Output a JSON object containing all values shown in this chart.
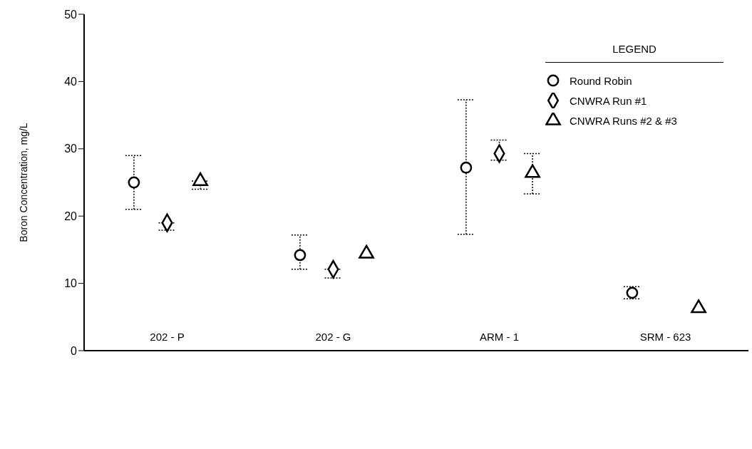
{
  "chart_data": {
    "type": "scatter",
    "ylabel": "Boron Concentration, mg/L",
    "legend_title": "LEGEND",
    "legend": "top right",
    "grid": false,
    "categories": [
      null,
      null,
      "202 - P",
      null,
      null,
      null,
      null,
      "202 - G",
      null,
      null,
      null,
      null,
      "ARM - 1",
      null,
      null,
      null,
      null,
      "SRM - 623",
      null,
      null
    ],
    "ylim": [
      0,
      50
    ],
    "yticks": [
      0,
      10,
      20,
      30,
      40,
      50
    ],
    "line_style": "dotted",
    "series": [
      {
        "name": "Round Robin",
        "color": "#000000",
        "marker": "circle",
        "values": [
          null,
          25,
          null,
          null,
          null,
          null,
          14.2,
          null,
          null,
          null,
          null,
          27.2,
          null,
          null,
          null,
          null,
          8.6,
          null,
          null,
          null
        ],
        "errors": [
          null,
          [
            21,
            29
          ],
          null,
          null,
          null,
          null,
          [
            12.1,
            17.2
          ],
          null,
          null,
          null,
          null,
          [
            17.3,
            37.3
          ],
          null,
          null,
          null,
          null,
          [
            7.7,
            9.5
          ],
          null,
          null,
          null
        ]
      },
      {
        "name": "CNWRA Run #1",
        "color": "#000000",
        "marker": "diamond",
        "values": [
          null,
          null,
          19,
          null,
          null,
          null,
          null,
          12.1,
          null,
          null,
          null,
          null,
          29.3,
          null,
          null,
          null,
          null,
          null,
          null,
          null
        ],
        "errors": [
          null,
          null,
          [
            17.9,
            19
          ],
          null,
          null,
          null,
          null,
          [
            10.8,
            12.1
          ],
          null,
          null,
          null,
          null,
          [
            28.3,
            31.3
          ],
          null,
          null,
          null,
          null,
          null,
          null,
          null
        ]
      },
      {
        "name": "CNWRA Runs #2 & #3",
        "color": "#000000",
        "marker": "triangle",
        "values": [
          null,
          null,
          null,
          25.2,
          null,
          null,
          null,
          null,
          14.4,
          null,
          null,
          null,
          null,
          26.4,
          null,
          null,
          null,
          null,
          6.3,
          null
        ],
        "errors": [
          null,
          null,
          null,
          [
            24,
            25.2
          ],
          null,
          null,
          null,
          null,
          null,
          null,
          null,
          null,
          null,
          [
            23.3,
            29.3
          ],
          null,
          null,
          null,
          null,
          null,
          null
        ]
      }
    ]
  }
}
